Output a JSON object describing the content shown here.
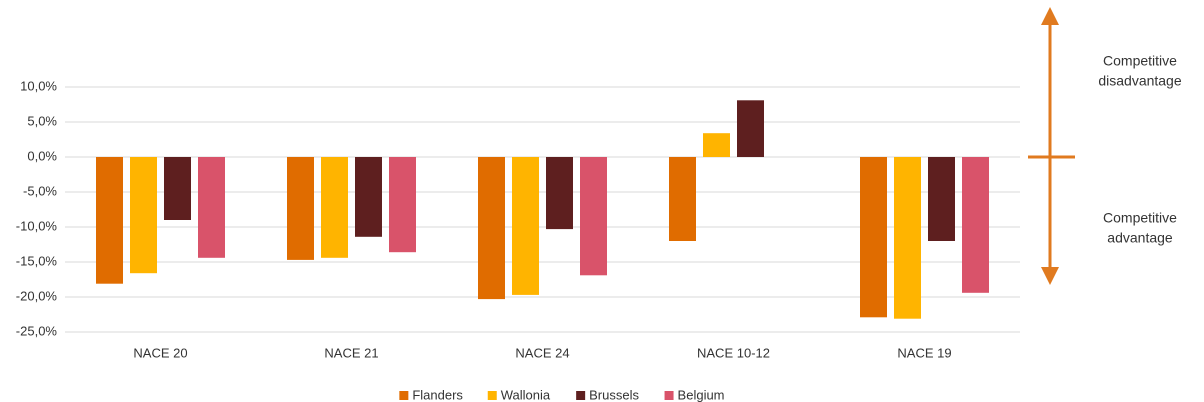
{
  "chart_data": {
    "type": "bar",
    "categories": [
      "NACE 20",
      "NACE 21",
      "NACE 24",
      "NACE 10-12",
      "NACE 19"
    ],
    "series": [
      {
        "name": "Flanders",
        "color": "#e06c00",
        "values": [
          -18.1,
          -14.7,
          -20.3,
          -12.0,
          -22.9
        ]
      },
      {
        "name": "Wallonia",
        "color": "#ffb400",
        "values": [
          -16.6,
          -14.4,
          -19.7,
          3.4,
          -23.1
        ]
      },
      {
        "name": "Brussels",
        "color": "#5e1f1f",
        "values": [
          -9.0,
          -11.4,
          -10.3,
          8.1,
          -12.0
        ]
      },
      {
        "name": "Belgium",
        "color": "#d9536a",
        "values": [
          -14.4,
          -13.6,
          -16.9,
          null,
          -19.4
        ]
      }
    ],
    "ylim": [
      -25,
      10
    ],
    "yticks": [
      {
        "value": 10,
        "label": "10,0%"
      },
      {
        "value": 5,
        "label": "5,0%"
      },
      {
        "value": 0,
        "label": "0,0%"
      },
      {
        "value": -5,
        "label": "-5,0%"
      },
      {
        "value": -10,
        "label": "-10,0%"
      },
      {
        "value": -15,
        "label": "-15,0%"
      },
      {
        "value": -20,
        "label": "-20,0%"
      },
      {
        "value": -25,
        "label": "-25,0%"
      }
    ],
    "grid": true,
    "legend": "bottom",
    "annotations": {
      "upper": [
        "Competitive",
        "disadvantage"
      ],
      "lower": [
        "Competitive",
        "advantage"
      ]
    },
    "annotation_color": "#e07a1f"
  }
}
